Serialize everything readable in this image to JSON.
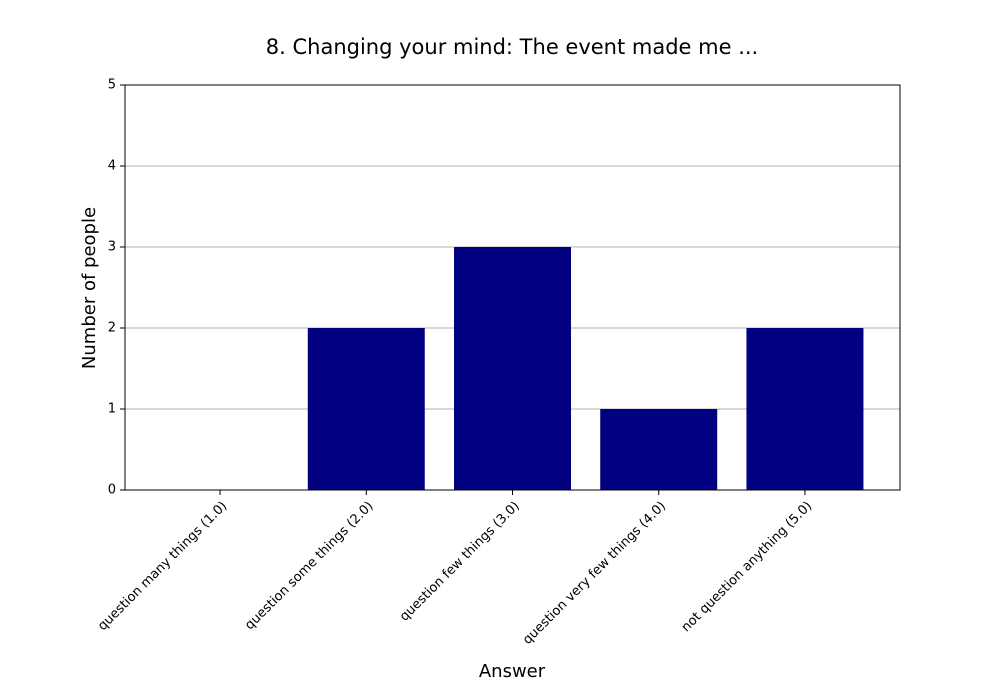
{
  "chart_data": {
    "type": "bar",
    "title": "8. Changing your mind: The event made me ...",
    "x_label": "Answer",
    "y_label": "Number of people",
    "categories": [
      "question many things (1.0)",
      "question some things (2.0)",
      "question few things (3.0)",
      "question very few things (4.0)",
      "not question anything (5.0)"
    ],
    "values": [
      0,
      2,
      3,
      1,
      2
    ],
    "color": "#000080",
    "ylim": [
      0,
      5
    ],
    "yticks": [
      0,
      1,
      2,
      3,
      4,
      5
    ],
    "grid": true
  }
}
